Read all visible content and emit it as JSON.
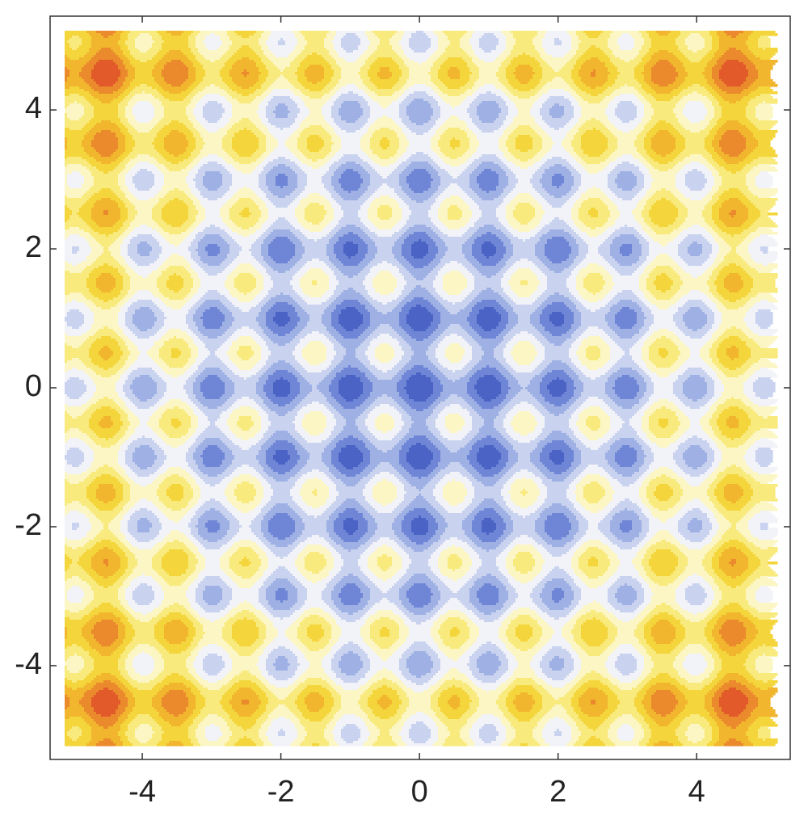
{
  "chart_data": {
    "type": "contour",
    "xlim": [
      -5.33,
      5.35
    ],
    "ylim": [
      -5.35,
      5.35
    ],
    "xticks": [
      -4,
      -2,
      0,
      2,
      4
    ],
    "yticks": [
      -4,
      -2,
      0,
      2,
      4
    ],
    "colors": [
      "#4a63c4",
      "#6f86d6",
      "#9eb0e4",
      "#c9d3ef",
      "#f2f3f8",
      "#fbf6c4",
      "#f8ea7c",
      "#f4d63c",
      "#f1b52e",
      "#ea8a2c",
      "#e2592a"
    ]
  }
}
